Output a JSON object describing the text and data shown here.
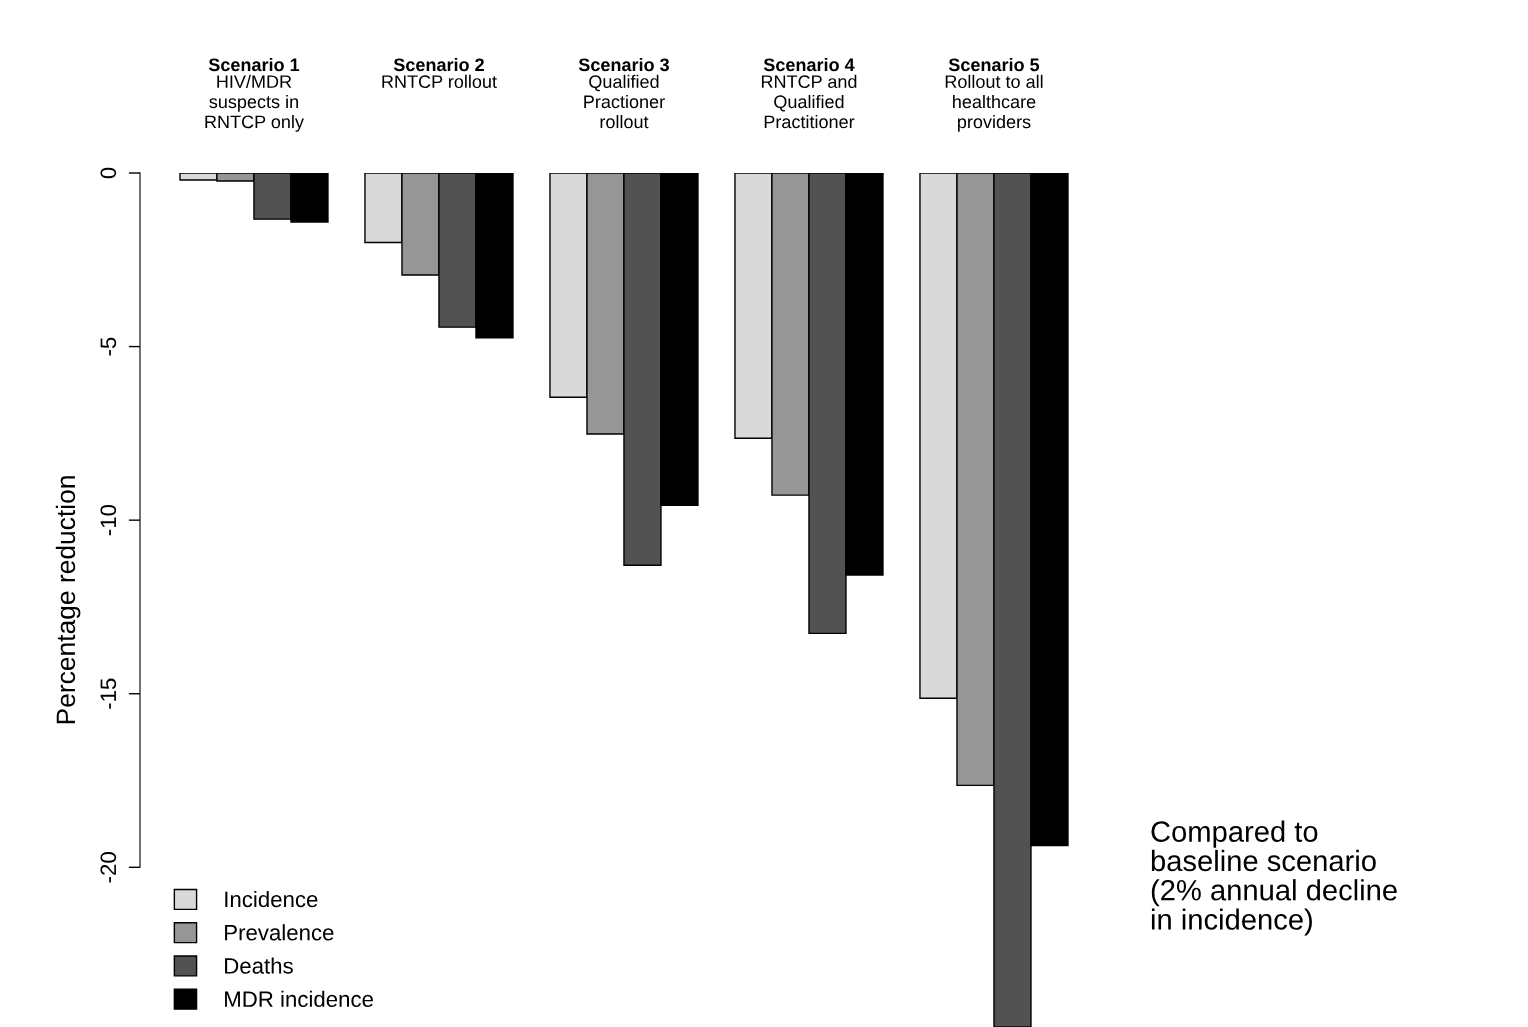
{
  "chart_data": {
    "type": "bar",
    "ylabel": "Percentage reduction",
    "categories": [
      "Scenario 1\nHIV/MDR\nsuspects in\nRNTCP only",
      "Scenario 2\nRNTCP rollout",
      "Scenario 3\nQualified\nPractioner\nrollout",
      "Scenario 4\nRNTCP and\nQualified\nPractitioner",
      "Scenario 5\nRollout to all\nhealthcare\nproviders"
    ],
    "series": [
      {
        "name": "Incidence",
        "color": "#d9d9d9",
        "values": [
          -0.2,
          -2.0,
          -6.46,
          -7.64,
          -15.13
        ]
      },
      {
        "name": "Prevalence",
        "color": "#969696",
        "values": [
          -0.23,
          -2.94,
          -7.52,
          -9.28,
          -17.64
        ]
      },
      {
        "name": "Deaths",
        "color": "#525252",
        "values": [
          -1.33,
          -4.44,
          -11.3,
          -13.26,
          -24.6
        ]
      },
      {
        "name": "MDR incidence",
        "color": "#000000",
        "values": [
          -1.41,
          -4.75,
          -9.57,
          -11.58,
          -19.37
        ]
      }
    ],
    "ylim": [
      -24.6,
      0
    ],
    "yticks": [
      0,
      -5,
      -10,
      -15,
      -20
    ],
    "grid": false,
    "legend": "bottom left",
    "annotations": [
      "Compared to\nbaseline scenario\n(2% annual decline\nin incidence)"
    ]
  }
}
